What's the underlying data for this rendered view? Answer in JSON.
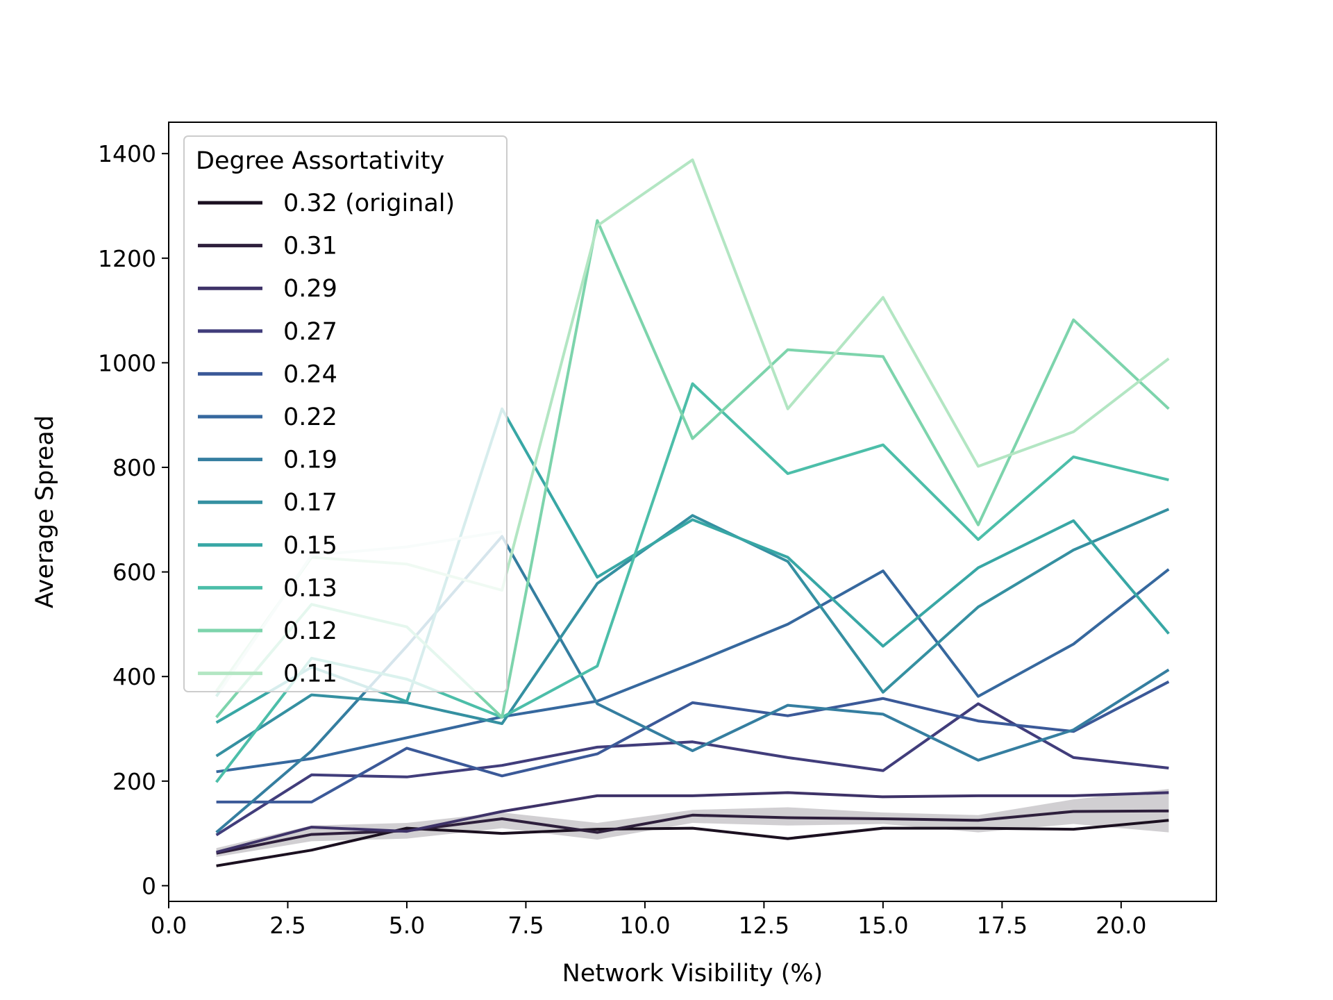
{
  "chart_data": {
    "type": "line",
    "title": "",
    "xlabel": "Network Visibility (%)",
    "ylabel": "Average Spread",
    "xlim": [
      0,
      22
    ],
    "ylim": [
      -30,
      1460
    ],
    "xticks": [
      0.0,
      2.5,
      5.0,
      7.5,
      10.0,
      12.5,
      15.0,
      17.5,
      20.0
    ],
    "xtick_labels": [
      "0.0",
      "2.5",
      "5.0",
      "7.5",
      "10.0",
      "12.5",
      "15.0",
      "17.5",
      "20.0"
    ],
    "yticks": [
      0,
      200,
      400,
      600,
      800,
      1000,
      1200,
      1400
    ],
    "ytick_labels": [
      "0",
      "200",
      "400",
      "600",
      "800",
      "1000",
      "1200",
      "1400"
    ],
    "grid": false,
    "legend": {
      "title": "Degree Assortativity",
      "placement": "upper-left"
    },
    "x": [
      1,
      3,
      5,
      7,
      9,
      11,
      13,
      15,
      17,
      19,
      21
    ],
    "series": [
      {
        "name": "0.32 (original)",
        "color": "#1b1020",
        "values": [
          38,
          68,
          110,
          100,
          108,
          110,
          90,
          110,
          110,
          108,
          125
        ],
        "band_low": [
          55,
          85,
          90,
          110,
          88,
          120,
          115,
          118,
          102,
          118,
          102
        ],
        "band_high": [
          72,
          115,
          120,
          140,
          120,
          145,
          150,
          140,
          135,
          165,
          185
        ]
      },
      {
        "name": "0.31",
        "color": "#2e1f3c",
        "values": [
          62,
          98,
          105,
          128,
          102,
          135,
          130,
          128,
          125,
          142,
          143
        ]
      },
      {
        "name": "0.29",
        "color": "#3e3268",
        "values": [
          64,
          112,
          104,
          142,
          172,
          172,
          178,
          170,
          172,
          172,
          178
        ]
      },
      {
        "name": "0.27",
        "color": "#413d7b",
        "values": [
          97,
          212,
          208,
          230,
          265,
          275,
          245,
          220,
          348,
          245,
          225
        ]
      },
      {
        "name": "0.24",
        "color": "#3b5998",
        "values": [
          160,
          160,
          263,
          210,
          252,
          350,
          325,
          358,
          315,
          295,
          390
        ]
      },
      {
        "name": "0.22",
        "color": "#36689e",
        "values": [
          218,
          243,
          283,
          323,
          353,
          425,
          500,
          602,
          362,
          462,
          605
        ]
      },
      {
        "name": "0.19",
        "color": "#357ea0",
        "values": [
          102,
          258,
          458,
          668,
          348,
          258,
          345,
          328,
          240,
          298,
          413
        ]
      },
      {
        "name": "0.17",
        "color": "#3590a1",
        "values": [
          248,
          365,
          350,
          310,
          578,
          708,
          620,
          370,
          533,
          642,
          720
        ]
      },
      {
        "name": "0.15",
        "color": "#38a7a5",
        "values": [
          312,
          418,
          352,
          912,
          590,
          700,
          628,
          458,
          608,
          698,
          482
        ]
      },
      {
        "name": "0.13",
        "color": "#4cbea9",
        "values": [
          198,
          435,
          395,
          322,
          420,
          960,
          788,
          843,
          662,
          820,
          776
        ]
      },
      {
        "name": "0.12",
        "color": "#7dd4ac",
        "values": [
          322,
          538,
          495,
          322,
          1272,
          855,
          1025,
          1012,
          690,
          1082,
          912
        ]
      },
      {
        "name": "0.11",
        "color": "#b3e6c3",
        "values": [
          372,
          628,
          615,
          565,
          1262,
          1388,
          912,
          1125,
          802,
          868,
          1008
        ]
      },
      {
        "name": "",
        "color": "#daf1ec",
        "values": [
          362,
          632,
          648,
          677,
          null,
          null,
          null,
          null,
          null,
          null,
          null
        ]
      }
    ]
  }
}
